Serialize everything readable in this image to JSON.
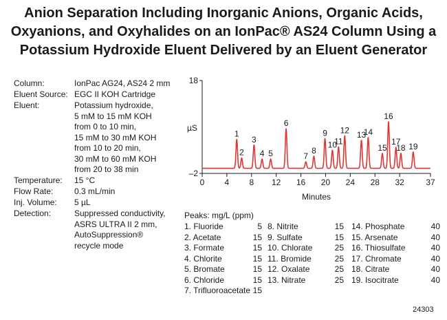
{
  "title": {
    "line1": "Anion Separation Including Inorganic Anions, Organic Acids,",
    "line2": "Oxyanions, and Oxyhalides on an IonPac® AS24 Column Using a",
    "line3": "Potassium Hydroxide Eluent Delivered by an Eluent Generator"
  },
  "conditions": [
    {
      "label": "Column:",
      "lines": [
        "IonPac AG24, AS24 2 mm"
      ]
    },
    {
      "label": "Eluent Source:",
      "lines": [
        "EGC II KOH Cartridge"
      ]
    },
    {
      "label": "Eluent:",
      "lines": [
        "Potassium hydroxide,",
        "5 mM to 15 mM KOH",
        "from 0 to 10 min,",
        "15 mM to 30 mM KOH",
        "from 10 to 20 min,",
        "30 mM to 60 mM KOH",
        "from 20 to 38 min"
      ]
    },
    {
      "label": "Temperature:",
      "lines": [
        "15 °C"
      ]
    },
    {
      "label": "Flow Rate:",
      "lines": [
        "0.3 mL/min"
      ]
    },
    {
      "label": "Inj. Volume:",
      "lines": [
        "5 µL"
      ]
    },
    {
      "label": "Detection:",
      "lines": [
        "Suppressed conductivity,",
        "ASRS ULTRA II 2 mm,",
        "AutoSuppression®",
        "recycle mode"
      ]
    }
  ],
  "chart_data": {
    "type": "line",
    "title": "",
    "xlabel": "Minutes",
    "ylabel": "µS",
    "xlim": [
      0,
      37
    ],
    "ylim": [
      -2,
      18
    ],
    "x_ticks": [
      0,
      4,
      8,
      12,
      16,
      20,
      24,
      28,
      32,
      37
    ],
    "y_ticks": [
      -2,
      18
    ],
    "y_tick_labels": [
      "–2",
      "18"
    ],
    "baseline": -0.9,
    "grid": false,
    "line_color": "#e03535",
    "peaks": [
      {
        "label": "1",
        "x": 5.6,
        "height": 6.2
      },
      {
        "label": "2",
        "x": 6.4,
        "height": 2.2
      },
      {
        "label": "3",
        "x": 8.4,
        "height": 5.0
      },
      {
        "label": "4",
        "x": 9.7,
        "height": 2.0
      },
      {
        "label": "5",
        "x": 11.1,
        "height": 2.0
      },
      {
        "label": "6",
        "x": 13.6,
        "height": 8.5
      },
      {
        "label": "7",
        "x": 16.8,
        "height": 1.4
      },
      {
        "label": "8",
        "x": 18.1,
        "height": 2.6
      },
      {
        "label": "9",
        "x": 19.9,
        "height": 6.4
      },
      {
        "label": "10",
        "x": 21.1,
        "height": 3.9
      },
      {
        "label": "11",
        "x": 22.1,
        "height": 4.6
      },
      {
        "label": "12",
        "x": 23.1,
        "height": 7.0
      },
      {
        "label": "13",
        "x": 25.8,
        "height": 6.0
      },
      {
        "label": "14",
        "x": 26.9,
        "height": 6.6
      },
      {
        "label": "15",
        "x": 29.2,
        "height": 3.2
      },
      {
        "label": "16",
        "x": 30.2,
        "height": 10.0
      },
      {
        "label": "17",
        "x": 31.4,
        "height": 4.5
      },
      {
        "label": "18",
        "x": 32.2,
        "height": 3.2
      },
      {
        "label": "19",
        "x": 34.2,
        "height": 3.5
      }
    ]
  },
  "peaks_table": {
    "heading": "Peaks:   mg/L (ppm)",
    "items": [
      {
        "name": "1. Fluoride",
        "conc": "5"
      },
      {
        "name": "2. Acetate",
        "conc": "15"
      },
      {
        "name": "3. Formate",
        "conc": "15"
      },
      {
        "name": "4. Chlorite",
        "conc": "15"
      },
      {
        "name": "5. Bromate",
        "conc": "15"
      },
      {
        "name": "6. Chloride",
        "conc": "15"
      },
      {
        "name": "7. Trifluoroacetate",
        "conc": "15"
      },
      {
        "name": "8. Nitrite",
        "conc": "15"
      },
      {
        "name": "9. Sulfate",
        "conc": "15"
      },
      {
        "name": "10. Chlorate",
        "conc": "25"
      },
      {
        "name": "11. Bromide",
        "conc": "25"
      },
      {
        "name": "12. Oxalate",
        "conc": "25"
      },
      {
        "name": "13. Nitrate",
        "conc": "25"
      },
      {
        "name": "14. Phosphate",
        "conc": "40"
      },
      {
        "name": "15. Arsenate",
        "conc": "40"
      },
      {
        "name": "16. Thiosulfate",
        "conc": "40"
      },
      {
        "name": "17. Chromate",
        "conc": "40"
      },
      {
        "name": "18. Citrate",
        "conc": "40"
      },
      {
        "name": "19. Isocitrate",
        "conc": "40"
      }
    ]
  },
  "figure_code": "24303"
}
